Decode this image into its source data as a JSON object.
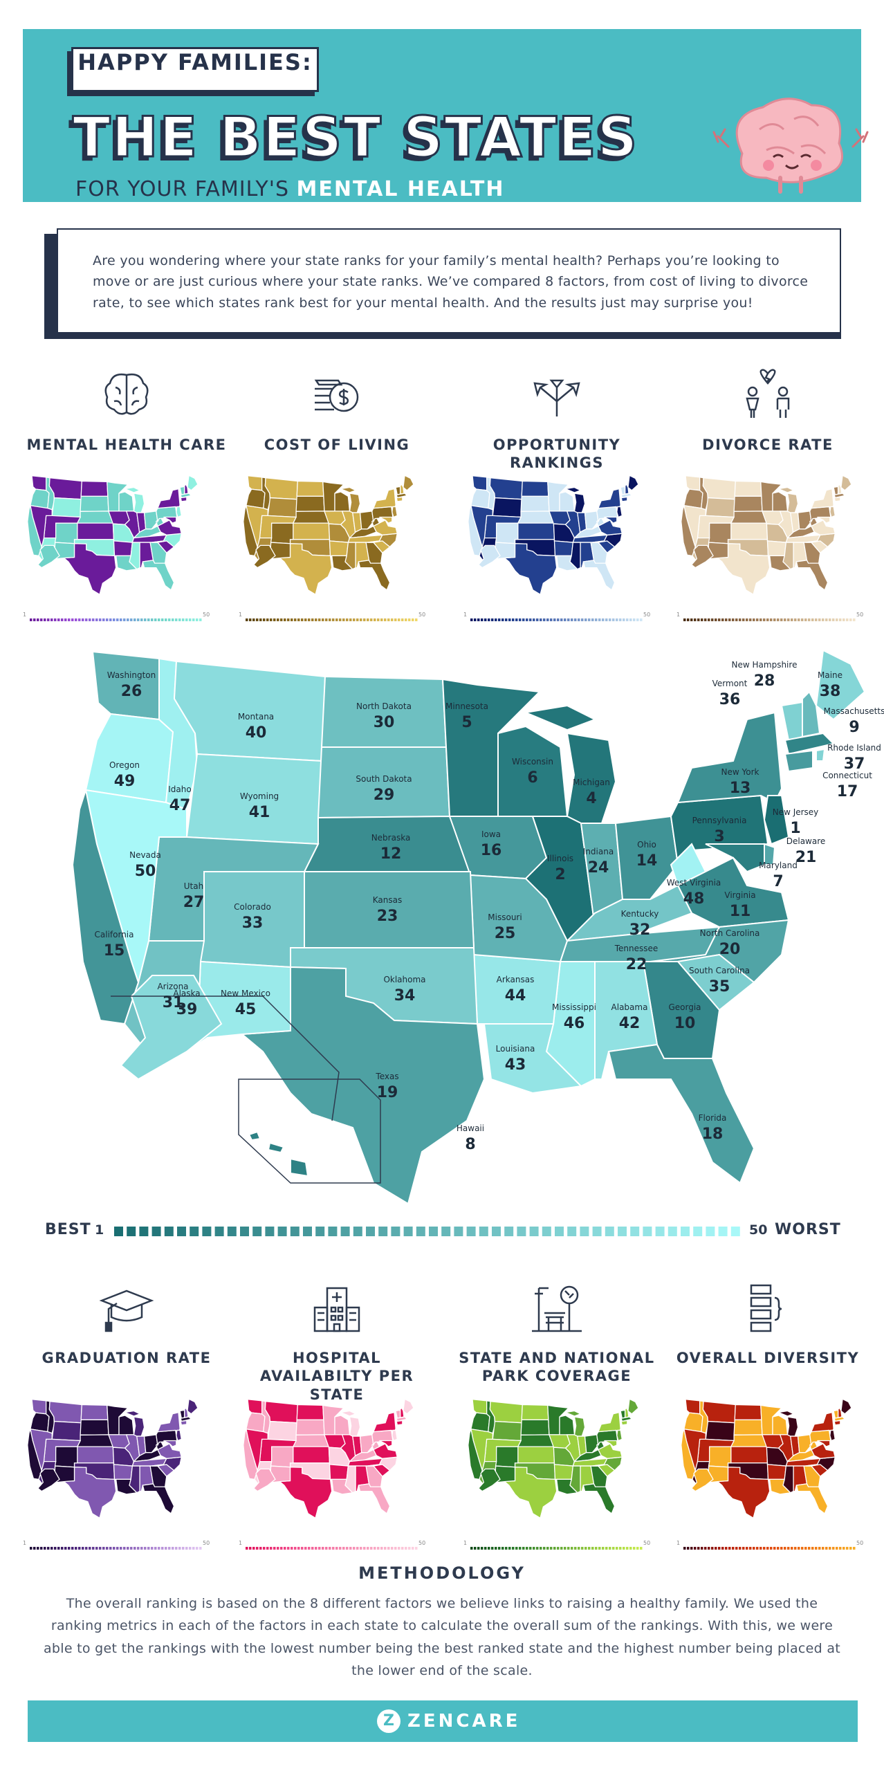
{
  "header": {
    "kicker": "HAPPY FAMILIES:",
    "title": "THE BEST STATES",
    "subtitle_prefix": "FOR YOUR FAMILY'S",
    "subtitle_emphasis": "MENTAL HEALTH"
  },
  "intro": "Are you wondering where your state ranks for your family’s mental health? Perhaps you’re looking to move or are just curious where your state ranks. We’ve compared 8 factors, from cost of living to divorce rate, to see which states rank best for your mental health. And the results just may surprise you!",
  "factors_top": [
    {
      "label": "MENTAL HEALTH CARE",
      "icon": "brain-icon",
      "palette": [
        "#6a1b9a",
        "#9c4fd8",
        "#7a8fe0",
        "#6fd3c8",
        "#8ff0e0"
      ]
    },
    {
      "label": "COST OF LIVING",
      "icon": "money-stack-icon",
      "palette": [
        "#5a4210",
        "#8a6a20",
        "#b08d3a",
        "#d3b24e",
        "#f0d86a"
      ]
    },
    {
      "label": "OPPORTUNITY RANKINGS",
      "icon": "arrows-branch-icon",
      "palette": [
        "#0a1560",
        "#23408f",
        "#5a78b8",
        "#94b3d8",
        "#cfe6f5"
      ]
    },
    {
      "label": "DIVORCE RATE",
      "icon": "broken-heart-couple-icon",
      "palette": [
        "#4a2d12",
        "#7a5636",
        "#a9865f",
        "#d4bc98",
        "#f2e4cc"
      ]
    }
  ],
  "factors_bottom": [
    {
      "label": "GRADUATION RATE",
      "icon": "graduation-cap-icon",
      "palette": [
        "#1e0a36",
        "#4a2478",
        "#8058b0",
        "#b48ed6",
        "#e3c8f2"
      ]
    },
    {
      "label": "HOSPITAL AVAILABILTY PER STATE",
      "icon": "hospital-icon",
      "palette": [
        "#e0105a",
        "#f04888",
        "#f47ca8",
        "#f8a8c4",
        "#fcd4e2"
      ]
    },
    {
      "label": "STATE AND NATIONAL PARK COVERAGE",
      "icon": "park-bench-tree-icon",
      "palette": [
        "#0f4a18",
        "#2a7a2a",
        "#64a838",
        "#9cd040",
        "#c8ec50"
      ]
    },
    {
      "label": "OVERALL DIVERSITY",
      "icon": "diversity-chart-icon",
      "palette": [
        "#3a0418",
        "#b8220e",
        "#e04a10",
        "#f07a14",
        "#f8b028"
      ]
    }
  ],
  "mini_scale": {
    "low": "1",
    "high": "50"
  },
  "states": [
    {
      "name": "Washington",
      "rank": 26
    },
    {
      "name": "Oregon",
      "rank": 49
    },
    {
      "name": "Idaho",
      "rank": 47
    },
    {
      "name": "Montana",
      "rank": 40
    },
    {
      "name": "Wyoming",
      "rank": 41
    },
    {
      "name": "North Dakota",
      "rank": 30
    },
    {
      "name": "South Dakota",
      "rank": 29
    },
    {
      "name": "Nebraska",
      "rank": 12
    },
    {
      "name": "Minnesota",
      "rank": 5
    },
    {
      "name": "Wisconsin",
      "rank": 6
    },
    {
      "name": "Michigan",
      "rank": 4
    },
    {
      "name": "Iowa",
      "rank": 16
    },
    {
      "name": "Illinois",
      "rank": 2
    },
    {
      "name": "Indiana",
      "rank": 24
    },
    {
      "name": "Ohio",
      "rank": 14
    },
    {
      "name": "Pennsylvania",
      "rank": 3
    },
    {
      "name": "New York",
      "rank": 13
    },
    {
      "name": "Maine",
      "rank": 38
    },
    {
      "name": "New Hampshire",
      "rank": 28
    },
    {
      "name": "Vermont",
      "rank": 36
    },
    {
      "name": "Massachusetts",
      "rank": 9
    },
    {
      "name": "Rhode Island",
      "rank": 37
    },
    {
      "name": "Connecticut",
      "rank": 17
    },
    {
      "name": "New Jersey",
      "rank": 1
    },
    {
      "name": "Delaware",
      "rank": 21
    },
    {
      "name": "Maryland",
      "rank": 7
    },
    {
      "name": "West Virginia",
      "rank": 48
    },
    {
      "name": "Virginia",
      "rank": 11
    },
    {
      "name": "Kentucky",
      "rank": 32
    },
    {
      "name": "North Carolina",
      "rank": 20
    },
    {
      "name": "Tennessee",
      "rank": 22
    },
    {
      "name": "South Carolina",
      "rank": 35
    },
    {
      "name": "Georgia",
      "rank": 10
    },
    {
      "name": "Alabama",
      "rank": 42
    },
    {
      "name": "Mississippi",
      "rank": 46
    },
    {
      "name": "Louisiana",
      "rank": 43
    },
    {
      "name": "Arkansas",
      "rank": 44
    },
    {
      "name": "Missouri",
      "rank": 25
    },
    {
      "name": "Kansas",
      "rank": 23
    },
    {
      "name": "Oklahoma",
      "rank": 34
    },
    {
      "name": "Texas",
      "rank": 19
    },
    {
      "name": "Colorado",
      "rank": 33
    },
    {
      "name": "New Mexico",
      "rank": 45
    },
    {
      "name": "Utah",
      "rank": 27
    },
    {
      "name": "Arizona",
      "rank": 31
    },
    {
      "name": "Nevada",
      "rank": 50
    },
    {
      "name": "California",
      "rank": 15
    },
    {
      "name": "Florida",
      "rank": 18
    },
    {
      "name": "Alaska",
      "rank": 39
    },
    {
      "name": "Hawaii",
      "rank": 8
    }
  ],
  "legend": {
    "best": "BEST",
    "low": "1",
    "high": "50",
    "worst": "WORST",
    "color_best": "#1a6e72",
    "color_worst": "#a8f8f8"
  },
  "methodology": {
    "title": "METHODOLOGY",
    "text": "The overall ranking is based on the 8 different factors we believe links to raising a healthy family. We used the ranking metrics in each of the factors in each state to calculate the overall sum of the rankings. With this, we were able to get the rankings with the lowest number being the best ranked state and the highest number being placed at the lower end of the scale."
  },
  "footer": {
    "brand": "ZENCARE",
    "mark": "Z",
    "color": "#4bbcc3"
  }
}
